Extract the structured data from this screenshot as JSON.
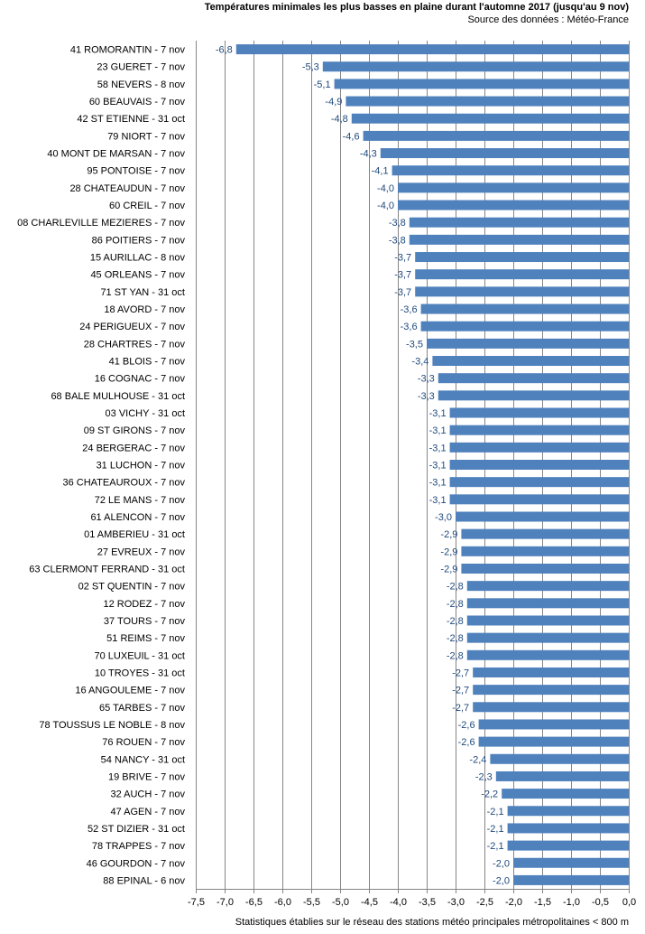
{
  "chart_data": {
    "type": "bar",
    "orientation": "horizontal",
    "title": "Températures minimales les plus basses en plaine durant l'automne 2017 (jusqu'au 9 nov)",
    "subtitle": "Source des données : Météo-France",
    "footnote": "Statistiques établies sur le réseau des stations météo principales métropolitaines < 800 m",
    "xlabel": "",
    "ylabel": "",
    "xlim": [
      -7.5,
      0.0
    ],
    "x_ticks": [
      "-7,5",
      "-7,0",
      "-6,5",
      "-6,0",
      "-5,5",
      "-5,0",
      "-4,5",
      "-4,0",
      "-3,5",
      "-3,0",
      "-2,5",
      "-2,0",
      "-1,5",
      "-1,0",
      "-0,5",
      "0,0"
    ],
    "x_tick_values": [
      -7.5,
      -7.0,
      -6.5,
      -6.0,
      -5.5,
      -5.0,
      -4.5,
      -4.0,
      -3.5,
      -3.0,
      -2.5,
      -2.0,
      -1.5,
      -1.0,
      -0.5,
      0.0
    ],
    "grid": "vertical",
    "legend": "none",
    "bar_color": "#4F81BD",
    "label_color": "#1F497D",
    "categories": [
      "41 ROMORANTIN - 7 nov",
      "23 GUERET - 7 nov",
      "58 NEVERS - 8 nov",
      "60 BEAUVAIS - 7 nov",
      "42 ST ETIENNE - 31 oct",
      "79 NIORT - 7 nov",
      "40 MONT DE MARSAN - 7 nov",
      "95 PONTOISE - 7 nov",
      "28 CHATEAUDUN - 7 nov",
      "60 CREIL - 7 nov",
      "08 CHARLEVILLE MEZIERES - 7 nov",
      "86 POITIERS - 7 nov",
      "15 AURILLAC - 8 nov",
      "45 ORLEANS - 7 nov",
      "71 ST YAN - 31 oct",
      "18 AVORD - 7 nov",
      "24 PERIGUEUX - 7 nov",
      "28 CHARTRES - 7 nov",
      "41 BLOIS - 7 nov",
      "16 COGNAC - 7 nov",
      "68 BALE MULHOUSE - 31 oct",
      "03 VICHY - 31 oct",
      "09 ST GIRONS - 7 nov",
      "24 BERGERAC - 7 nov",
      "31 LUCHON - 7 nov",
      "36 CHATEAUROUX - 7 nov",
      "72 LE MANS - 7 nov",
      "61 ALENCON - 7 nov",
      "01 AMBERIEU - 31 oct",
      "27 EVREUX - 7 nov",
      "63 CLERMONT FERRAND - 31 oct",
      "02 ST QUENTIN - 7 nov",
      "12 RODEZ - 7 nov",
      "37 TOURS - 7 nov",
      "51 REIMS - 7 nov",
      "70 LUXEUIL - 31 oct",
      "10 TROYES - 31 oct",
      "16 ANGOULEME - 7 nov",
      "65 TARBES - 7 nov",
      "78 TOUSSUS LE NOBLE - 8 nov",
      "76 ROUEN - 7 nov",
      "54 NANCY - 31 oct",
      "19 BRIVE - 7 nov",
      "32 AUCH - 7 nov",
      "47 AGEN - 7 nov",
      "52 ST DIZIER - 31 oct",
      "78 TRAPPES - 7 nov",
      "46 GOURDON - 7 nov",
      "88 EPINAL - 6 nov"
    ],
    "values": [
      -6.8,
      -5.3,
      -5.1,
      -4.9,
      -4.8,
      -4.6,
      -4.3,
      -4.1,
      -4.0,
      -4.0,
      -3.8,
      -3.8,
      -3.7,
      -3.7,
      -3.7,
      -3.6,
      -3.6,
      -3.5,
      -3.4,
      -3.3,
      -3.3,
      -3.1,
      -3.1,
      -3.1,
      -3.1,
      -3.1,
      -3.1,
      -3.0,
      -2.9,
      -2.9,
      -2.9,
      -2.8,
      -2.8,
      -2.8,
      -2.8,
      -2.8,
      -2.7,
      -2.7,
      -2.7,
      -2.6,
      -2.6,
      -2.4,
      -2.3,
      -2.2,
      -2.1,
      -2.1,
      -2.1,
      -2.0,
      -2.0
    ],
    "value_labels": [
      "-6,8",
      "-5,3",
      "-5,1",
      "-4,9",
      "-4,8",
      "-4,6",
      "-4,3",
      "-4,1",
      "-4,0",
      "-4,0",
      "-3,8",
      "-3,8",
      "-3,7",
      "-3,7",
      "-3,7",
      "-3,6",
      "-3,6",
      "-3,5",
      "-3,4",
      "-3,3",
      "-3,3",
      "-3,1",
      "-3,1",
      "-3,1",
      "-3,1",
      "-3,1",
      "-3,1",
      "-3,0",
      "-2,9",
      "-2,9",
      "-2,9",
      "-2,8",
      "-2,8",
      "-2,8",
      "-2,8",
      "-2,8",
      "-2,7",
      "-2,7",
      "-2,7",
      "-2,6",
      "-2,6",
      "-2,4",
      "-2,3",
      "-2,2",
      "-2,1",
      "-2,1",
      "-2,1",
      "-2,0",
      "-2,0"
    ]
  }
}
